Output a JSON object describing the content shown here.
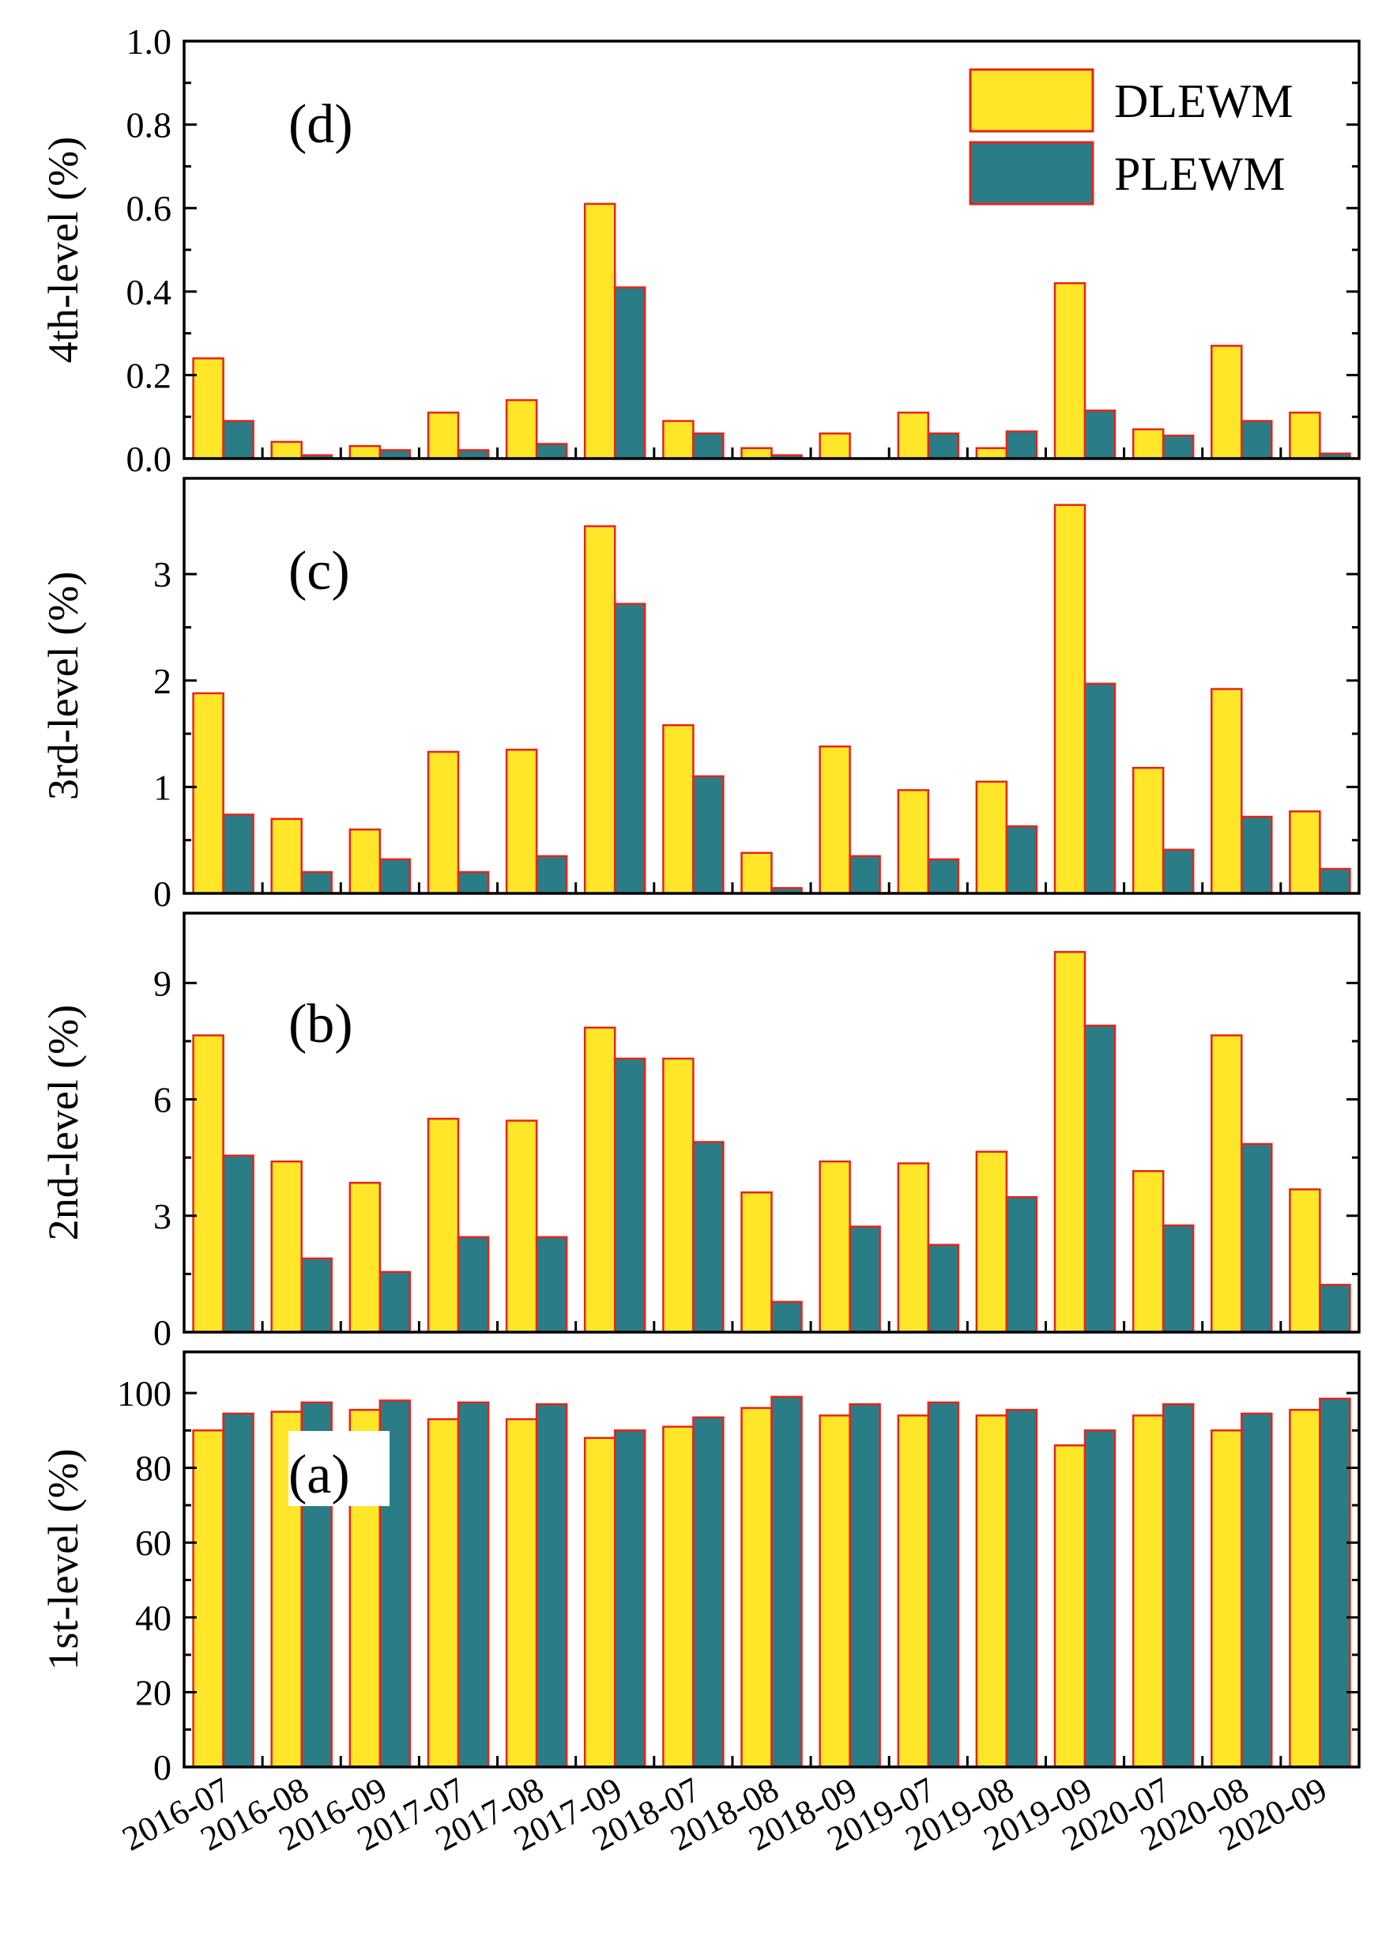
{
  "chart_data": {
    "type": "bar",
    "colors": {
      "DLEWM": "#FFE629",
      "PLEWM": "#2A7D86",
      "bar_edge": "#E8231A"
    },
    "categories": [
      "2016-07",
      "2016-08",
      "2016-09",
      "2017-07",
      "2017-08",
      "2017-09",
      "2018-07",
      "2018-08",
      "2018-09",
      "2019-07",
      "2019-08",
      "2019-09",
      "2020-07",
      "2020-08",
      "2020-09"
    ],
    "legend": {
      "placement": "top-right",
      "entries": [
        {
          "name": "DLEWM",
          "color": "#FFE629"
        },
        {
          "name": "PLEWM",
          "color": "#2A7D86"
        }
      ]
    },
    "panels": [
      {
        "label": "(d)",
        "ylabel": "4th-level (%)",
        "ylim": [
          0,
          1.0
        ],
        "yticks": [
          0.0,
          0.2,
          0.4,
          0.6,
          0.8,
          1.0
        ],
        "ytick_labels": [
          "0.0",
          "0.2",
          "0.4",
          "0.6",
          "0.8",
          "1.0"
        ],
        "series": [
          {
            "name": "DLEWM",
            "values": [
              0.24,
              0.04,
              0.03,
              0.11,
              0.14,
              0.61,
              0.09,
              0.025,
              0.06,
              0.11,
              0.025,
              0.42,
              0.07,
              0.27,
              0.11
            ]
          },
          {
            "name": "PLEWM",
            "values": [
              0.09,
              0.008,
              0.02,
              0.02,
              0.035,
              0.41,
              0.06,
              0.008,
              0.0,
              0.06,
              0.065,
              0.115,
              0.055,
              0.09,
              0.012
            ]
          }
        ]
      },
      {
        "label": "(c)",
        "ylabel": "3rd-level (%)",
        "ylim": [
          0,
          3.9
        ],
        "yticks": [
          0,
          1,
          2,
          3
        ],
        "ytick_labels": [
          "0",
          "1",
          "2",
          "3"
        ],
        "series": [
          {
            "name": "DLEWM",
            "values": [
              1.88,
              0.7,
              0.6,
              1.33,
              1.35,
              3.45,
              1.58,
              0.38,
              1.38,
              0.97,
              1.05,
              3.65,
              1.18,
              1.92,
              0.77
            ]
          },
          {
            "name": "PLEWM",
            "values": [
              0.74,
              0.2,
              0.32,
              0.2,
              0.35,
              2.72,
              1.1,
              0.05,
              0.35,
              0.32,
              0.63,
              1.97,
              0.41,
              0.72,
              0.23
            ]
          }
        ]
      },
      {
        "label": "(b)",
        "ylabel": "2nd-level (%)",
        "ylim": [
          0,
          10.8
        ],
        "yticks": [
          0,
          3,
          6,
          9
        ],
        "ytick_labels": [
          "0",
          "3",
          "6",
          "9"
        ],
        "series": [
          {
            "name": "DLEWM",
            "values": [
              7.65,
              4.4,
              3.85,
              5.5,
              5.45,
              7.85,
              7.05,
              3.6,
              4.4,
              4.35,
              4.65,
              9.8,
              4.15,
              7.65,
              3.68
            ]
          },
          {
            "name": "PLEWM",
            "values": [
              4.55,
              1.9,
              1.55,
              2.45,
              2.45,
              7.05,
              4.9,
              0.78,
              2.72,
              2.25,
              3.48,
              7.9,
              2.75,
              4.85,
              1.22
            ]
          }
        ]
      },
      {
        "label": "(a)",
        "ylabel": "1st-level (%)",
        "ylim": [
          0,
          111
        ],
        "yticks": [
          0,
          20,
          40,
          60,
          80,
          100
        ],
        "ytick_labels": [
          "0",
          "20",
          "40",
          "60",
          "80",
          "100"
        ],
        "series": [
          {
            "name": "DLEWM",
            "values": [
              90,
              95,
              95.5,
              93,
              93,
              88,
              91,
              96,
              94,
              94,
              94,
              86,
              94,
              90,
              95.5
            ]
          },
          {
            "name": "PLEWM",
            "values": [
              94.5,
              97.5,
              98,
              97.5,
              97,
              90,
              93.5,
              99,
              97,
              97.5,
              95.5,
              90,
              97,
              94.5,
              98.5
            ]
          }
        ]
      }
    ]
  }
}
